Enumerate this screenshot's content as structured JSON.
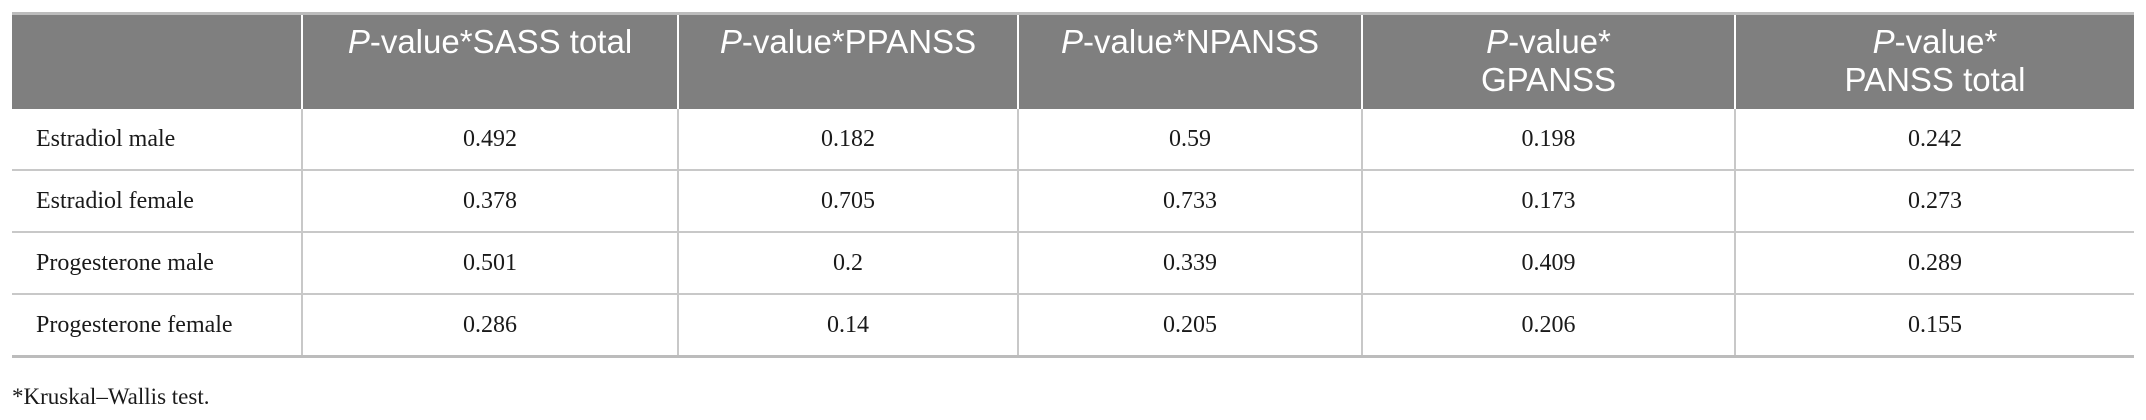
{
  "table": {
    "header": {
      "corner": "",
      "columns": [
        {
          "p": "P",
          "rest": "-value*SASS total"
        },
        {
          "p": "P",
          "rest": "-value*PPANSS"
        },
        {
          "p": "P",
          "rest": "-value*NPANSS"
        },
        {
          "p": "P",
          "rest": "-value*",
          "line2": "GPANSS"
        },
        {
          "p": "P",
          "rest": "-value*",
          "line2": "PANSS total"
        }
      ]
    },
    "rows": [
      {
        "label": "Estradiol male",
        "values": [
          "0.492",
          "0.182",
          "0.59",
          "0.198",
          "0.242"
        ]
      },
      {
        "label": "Estradiol female",
        "values": [
          "0.378",
          "0.705",
          "0.733",
          "0.173",
          "0.273"
        ]
      },
      {
        "label": "Progesterone male",
        "values": [
          "0.501",
          "0.2",
          "0.339",
          "0.409",
          "0.289"
        ]
      },
      {
        "label": "Progesterone female",
        "values": [
          "0.286",
          "0.14",
          "0.205",
          "0.206",
          "0.155"
        ]
      }
    ]
  },
  "footnote": "*Kruskal–Wallis test."
}
